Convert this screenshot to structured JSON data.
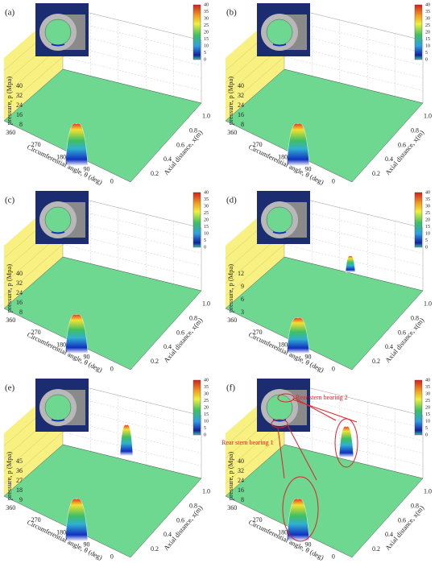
{
  "panels": [
    {
      "label": "(a)",
      "z_axis_label": "pressure, p (Mpa)",
      "z_ticks": [
        "8",
        "16",
        "24",
        "32",
        "40"
      ],
      "x_axis_label": "Circumferential angle, θ (deg)",
      "x_ticks": [
        "360",
        "270",
        "180",
        "90",
        "0"
      ],
      "y_axis_label": "Axial distance, x(m)",
      "y_ticks": [
        "0.2",
        "0.4",
        "0.6",
        "0.8",
        "1.0"
      ],
      "colorbar_ticks": [
        "0",
        "5",
        "10",
        "15",
        "20",
        "25",
        "30",
        "35",
        "40"
      ]
    },
    {
      "label": "(b)",
      "z_axis_label": "pressure, p (Mpa)",
      "z_ticks": [
        "8",
        "16",
        "24",
        "32",
        "40"
      ],
      "x_axis_label": "Circumferential angle, θ (deg)",
      "x_ticks": [
        "360",
        "270",
        "180",
        "90",
        "0"
      ],
      "y_axis_label": "Axial distance, x(m)",
      "y_ticks": [
        "0.2",
        "0.4",
        "0.6",
        "0.8",
        "1.0"
      ],
      "colorbar_ticks": [
        "0",
        "5",
        "10",
        "15",
        "20",
        "25",
        "30",
        "35",
        "40"
      ]
    },
    {
      "label": "(c)",
      "z_axis_label": "pressure, p (Mpa)",
      "z_ticks": [
        "8",
        "16",
        "24",
        "32",
        "40"
      ],
      "x_axis_label": "Circumferential angle, θ (deg)",
      "x_ticks": [
        "360",
        "270",
        "180",
        "90",
        "0"
      ],
      "y_axis_label": "Axial distance, x(m)",
      "y_ticks": [
        "0.2",
        "0.4",
        "0.6",
        "0.8",
        "1.0"
      ],
      "colorbar_ticks": [
        "0",
        "5",
        "10",
        "15",
        "20",
        "25",
        "30",
        "35",
        "40"
      ]
    },
    {
      "label": "(d)",
      "z_axis_label": "pressure, p (Mpa)",
      "z_ticks": [
        "3",
        "6",
        "9",
        "12"
      ],
      "x_axis_label": "Circumferential angle, θ (deg)",
      "x_ticks": [
        "360",
        "270",
        "180",
        "90",
        "0"
      ],
      "y_axis_label": "Axial distance, x(m)",
      "y_ticks": [
        "0.2",
        "0.4",
        "0.6",
        "0.8",
        "1.0"
      ],
      "colorbar_ticks": [
        "0",
        "5",
        "10",
        "15",
        "20",
        "25",
        "30",
        "35",
        "40"
      ]
    },
    {
      "label": "(e)",
      "z_axis_label": "pressure, p (Mpa)",
      "z_ticks": [
        "9",
        "18",
        "27",
        "36",
        "45"
      ],
      "x_axis_label": "Circumferential angle, θ (deg)",
      "x_ticks": [
        "360",
        "270",
        "180",
        "90",
        "0"
      ],
      "y_axis_label": "Axial distance, x(m)",
      "y_ticks": [
        "0.2",
        "0.4",
        "0.6",
        "0.8",
        "1.0"
      ],
      "colorbar_ticks": [
        "0",
        "5",
        "10",
        "15",
        "20",
        "25",
        "30",
        "35",
        "40"
      ]
    },
    {
      "label": "(f)",
      "z_axis_label": "pressure, p (Mpa)",
      "z_ticks": [
        "8",
        "16",
        "24",
        "32",
        "40"
      ],
      "x_axis_label": "Circumferential angle, θ (deg)",
      "x_ticks": [
        "360",
        "270",
        "180",
        "90",
        "0"
      ],
      "y_axis_label": "Axial distance, x(m)",
      "y_ticks": [
        "0.2",
        "0.4",
        "0.6",
        "0.8",
        "1.0"
      ],
      "colorbar_ticks": [
        "0",
        "5",
        "10",
        "15",
        "20",
        "25",
        "30",
        "35",
        "40"
      ]
    }
  ],
  "annotations": [
    "Rear stern bearing 2",
    "Rear stern bearing 1"
  ]
}
